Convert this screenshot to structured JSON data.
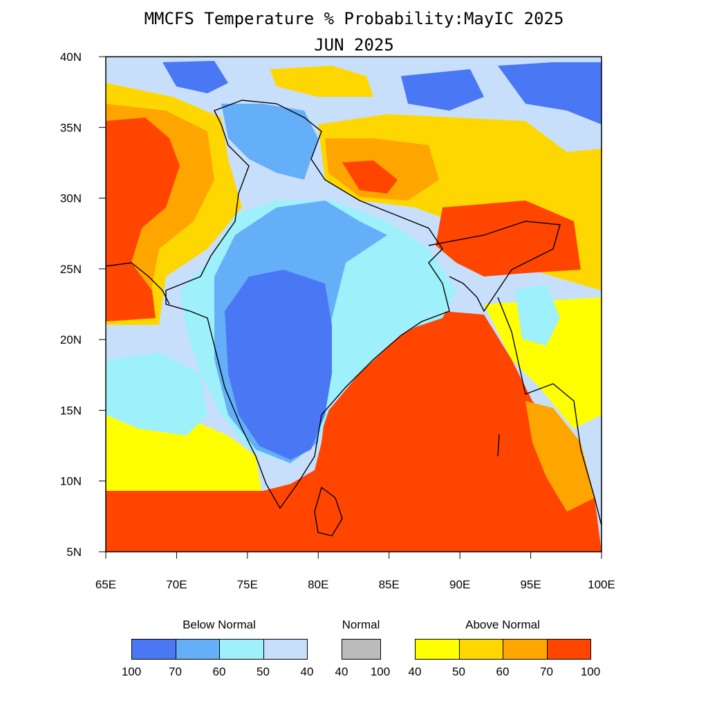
{
  "title": "MMCFS Temperature % Probability:MayIC 2025",
  "subtitle": "JUN 2025",
  "axes": {
    "lat_ticks": [
      "40N",
      "35N",
      "30N",
      "25N",
      "20N",
      "15N",
      "10N",
      "5N"
    ],
    "lon_ticks": [
      "65E",
      "70E",
      "75E",
      "80E",
      "85E",
      "90E",
      "95E",
      "100E"
    ]
  },
  "legend": {
    "below": {
      "label": "Below Normal",
      "colors": [
        "#4a78f5",
        "#64aff8",
        "#9ef0fb",
        "#c8dffc"
      ],
      "ticks": [
        "100",
        "70",
        "60",
        "50",
        "40"
      ]
    },
    "normal": {
      "label": "Normal",
      "colors": [
        "#bbbbbb"
      ],
      "ticks": [
        "40",
        "100"
      ]
    },
    "above": {
      "label": "Above Normal",
      "colors": [
        "#ffff00",
        "#ffd700",
        "#ffa500",
        "#ff4500"
      ],
      "ticks": [
        "40",
        "50",
        "60",
        "70",
        "100"
      ]
    }
  }
}
